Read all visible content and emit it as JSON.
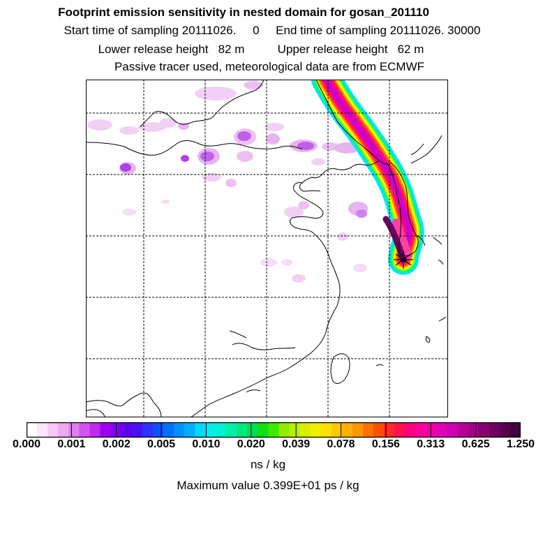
{
  "title": {
    "line1": "Footprint emission sensitivity in nested domain for gosan_201110",
    "line2": "Start time of sampling 20111026.     0     End time of sampling 20111026. 30000",
    "line3": "Lower release height   82 m          Upper release height   62 m",
    "line4": "Passive tracer used, meteorological data are from ECMWF"
  },
  "colorbar": {
    "labels": [
      "0.000",
      "0.001",
      "0.002",
      "0.005",
      "0.010",
      "0.020",
      "0.039",
      "0.078",
      "0.156",
      "0.313",
      "0.625",
      "1.250"
    ],
    "colors": [
      "#ffffff",
      "#fce6fc",
      "#f5c8f5",
      "#eeaaf0",
      "#e080f0",
      "#d255f0",
      "#c02af0",
      "#a000f0",
      "#8000f0",
      "#6000f0",
      "#4a10f5",
      "#3030ff",
      "#1050ff",
      "#0070ff",
      "#0090ff",
      "#00b0ff",
      "#00d8ff",
      "#00f0f0",
      "#00f0d0",
      "#00f0a8",
      "#00e880",
      "#00e050",
      "#10e010",
      "#40e800",
      "#90ee00",
      "#b8f000",
      "#d8f000",
      "#f0f000",
      "#ffe000",
      "#ffc800",
      "#ffb000",
      "#ff9800",
      "#ff7000",
      "#ff5000",
      "#ff2828",
      "#ff1050",
      "#ff0080",
      "#ff0098",
      "#f000a8",
      "#e000b8",
      "#d000b0",
      "#b80098",
      "#a00088",
      "#880070",
      "#700060",
      "#580050",
      "#400040"
    ]
  },
  "units": "ns / kg",
  "max_value": "Maximum value  0.399E+01 ps / kg",
  "map": {
    "receptor_marker": "gosan-receptor-marker",
    "plume_colors": [
      "#cc00cc",
      "#ff0090",
      "#ff3030",
      "#ff8c00",
      "#ffff00",
      "#80ff00",
      "#00e8b0",
      "#00e8ff"
    ]
  }
}
